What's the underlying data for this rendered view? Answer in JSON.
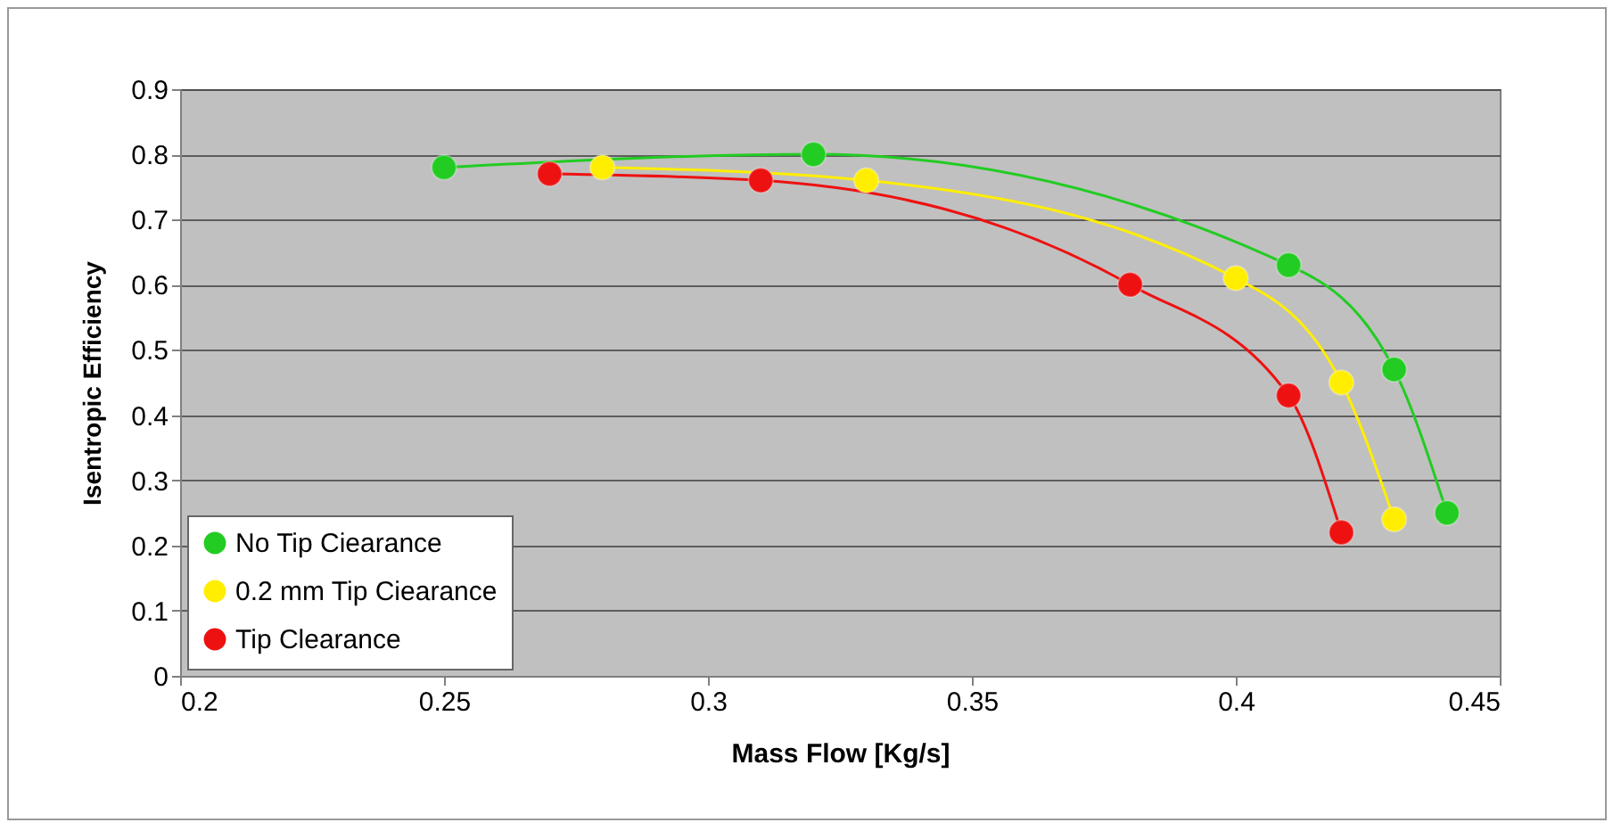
{
  "chart_data": {
    "type": "line",
    "xlabel": "Mass Flow  [Kg/s]",
    "ylabel": "Isentropic Efficiency",
    "xlim": [
      0.2,
      0.45
    ],
    "xticks": [
      0.2,
      0.25,
      0.3,
      0.35,
      0.4,
      0.45
    ],
    "ylim": [
      0,
      0.9
    ],
    "yticks": [
      0,
      0.1,
      0.2,
      0.3,
      0.4,
      0.5,
      0.6,
      0.7,
      0.8,
      0.9
    ],
    "grid": "y",
    "legend": "bottom left",
    "marker": "circle",
    "line_style": "solid",
    "series": [
      {
        "name": "No Tip Ciearance",
        "color": "#22cc22",
        "x": [
          0.25,
          0.32,
          0.41,
          0.43,
          0.44
        ],
        "values": [
          0.78,
          0.8,
          0.63,
          0.47,
          0.25
        ]
      },
      {
        "name": "0.2 mm Tip Ciearance",
        "color": "#ffee00",
        "x": [
          0.28,
          0.33,
          0.4,
          0.42,
          0.43
        ],
        "values": [
          0.78,
          0.76,
          0.61,
          0.45,
          0.24
        ]
      },
      {
        "name": "Tip Clearance",
        "color": "#ee1111",
        "x": [
          0.27,
          0.31,
          0.38,
          0.41,
          0.42
        ],
        "values": [
          0.77,
          0.76,
          0.6,
          0.43,
          0.22
        ]
      }
    ]
  }
}
